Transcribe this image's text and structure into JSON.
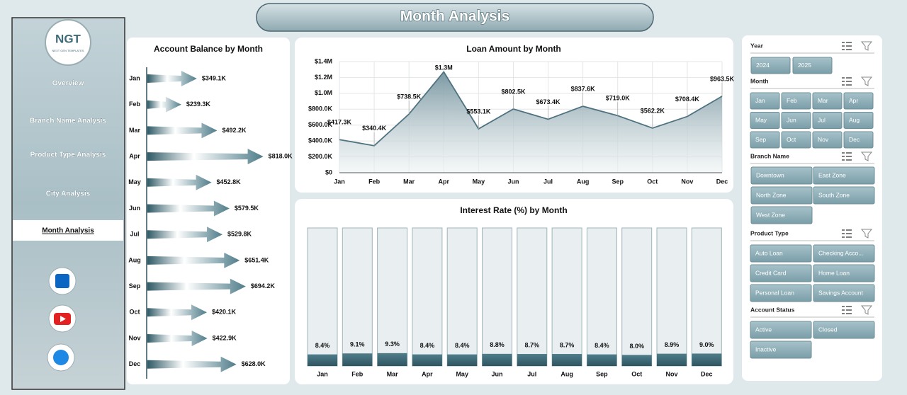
{
  "header": {
    "title": "Month Analysis"
  },
  "sidebar": {
    "logo": "NGT",
    "logo_subtitle": "NEXT GEN TEMPLATES",
    "nav": [
      "Overview",
      "Branch Name Analysis",
      "Product Type Analysis",
      "City Analysis",
      "Month Analysis"
    ]
  },
  "chart_data": [
    {
      "type": "bar",
      "orientation": "horizontal",
      "title": "Account Balance by Month",
      "color": "#4f7d8a",
      "categories": [
        "Jan",
        "Feb",
        "Mar",
        "Apr",
        "May",
        "Jun",
        "Jul",
        "Aug",
        "Sep",
        "Oct",
        "Nov",
        "Dec"
      ],
      "values": [
        349.1,
        239.3,
        492.2,
        818.0,
        452.8,
        579.5,
        529.8,
        651.4,
        694.2,
        420.1,
        422.9,
        628.0
      ],
      "value_labels": [
        "$349.1K",
        "$239.3K",
        "$492.2K",
        "$818.0K",
        "$452.8K",
        "$579.5K",
        "$529.8K",
        "$651.4K",
        "$694.2K",
        "$420.1K",
        "$422.9K",
        "$628.0K"
      ]
    },
    {
      "type": "area",
      "title": "Loan Amount by Month",
      "color": "#4f7280",
      "categories": [
        "Jan",
        "Feb",
        "Mar",
        "Apr",
        "May",
        "Jun",
        "Jul",
        "Aug",
        "Sep",
        "Oct",
        "Nov",
        "Dec"
      ],
      "values": [
        417300,
        340400,
        738500,
        1270000,
        553100,
        802500,
        673400,
        837600,
        719000,
        562200,
        708400,
        963500
      ],
      "value_labels": [
        "$417.3K",
        "$340.4K",
        "$738.5K",
        "$1.3M",
        "$553.1K",
        "$802.5K",
        "$673.4K",
        "$837.6K",
        "$719.0K",
        "$562.2K",
        "$708.4K",
        "$963.5K"
      ],
      "ylim": [
        0,
        1400000
      ],
      "yticks": [
        {
          "value": 0,
          "label": "$0"
        },
        {
          "value": 200000,
          "label": "$200.0K"
        },
        {
          "value": 400000,
          "label": "$400.0K"
        },
        {
          "value": 600000,
          "label": "$600.0K"
        },
        {
          "value": 800000,
          "label": "$800.0K"
        },
        {
          "value": 1000000,
          "label": "$1.0M"
        },
        {
          "value": 1200000,
          "label": "$1.2M"
        },
        {
          "value": 1400000,
          "label": "$1.4M"
        }
      ],
      "grid": true
    },
    {
      "type": "bar",
      "orientation": "vertical",
      "title": "Interest Rate (%) by Month",
      "color": "#4f7d8a",
      "categories": [
        "Jan",
        "Feb",
        "Mar",
        "Apr",
        "May",
        "Jun",
        "Jul",
        "Aug",
        "Sep",
        "Oct",
        "Nov",
        "Dec"
      ],
      "values": [
        8.4,
        9.1,
        9.3,
        8.4,
        8.4,
        8.8,
        8.7,
        8.7,
        8.4,
        8.0,
        8.9,
        9.0
      ],
      "value_labels": [
        "8.4%",
        "9.1%",
        "9.3%",
        "8.4%",
        "8.4%",
        "8.8%",
        "8.7%",
        "8.7%",
        "8.4%",
        "8.0%",
        "8.9%",
        "9.0%"
      ],
      "ylim": [
        0,
        100
      ]
    }
  ],
  "slicers": [
    {
      "title": "Year",
      "items": [
        "2024",
        "2025"
      ]
    },
    {
      "title": "Month",
      "items": [
        "Jan",
        "Feb",
        "Mar",
        "Apr",
        "May",
        "Jun",
        "Jul",
        "Aug",
        "Sep",
        "Oct",
        "Nov",
        "Dec"
      ]
    },
    {
      "title": "Branch Name",
      "items": [
        "Downtown",
        "East Zone",
        "North Zone",
        "South Zone",
        "West Zone"
      ]
    },
    {
      "title": "Product Type",
      "items": [
        "Auto Loan",
        "Checking Acco...",
        "Credit Card",
        "Home Loan",
        "Personal Loan",
        "Savings Account"
      ]
    },
    {
      "title": "Account Status",
      "items": [
        "Active",
        "Closed",
        "Inactive"
      ]
    }
  ]
}
